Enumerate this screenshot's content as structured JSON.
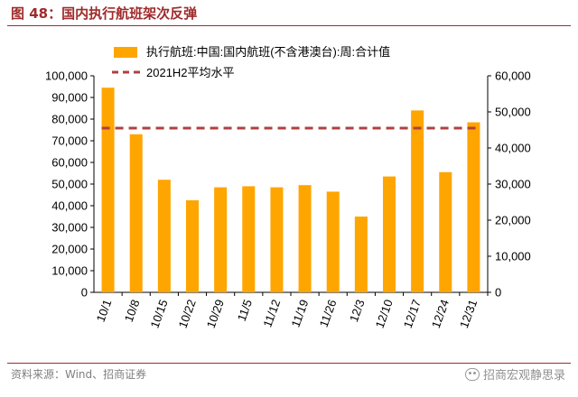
{
  "figure": {
    "title": "图 48：国内执行航班架次反弹",
    "source": "资料来源：Wind、招商证券",
    "brand": "招商宏观静思录"
  },
  "colors": {
    "bar": "#FFA500",
    "avg_line": "#B04040",
    "title": "#A02B2B"
  },
  "chart_data": {
    "type": "bar",
    "title": "",
    "categories": [
      "10/1",
      "10/8",
      "10/15",
      "10/22",
      "10/29",
      "11/5",
      "11/12",
      "11/19",
      "11/26",
      "12/3",
      "12/10",
      "12/17",
      "12/24",
      "12/31"
    ],
    "series": [
      {
        "name": "执行航班:中国:国内航班(不含港澳台):周:合计值",
        "type": "bar",
        "axis": "left",
        "values": [
          94500,
          73000,
          52000,
          42500,
          48500,
          49000,
          48500,
          49500,
          46500,
          35000,
          53500,
          84000,
          55500,
          78500
        ]
      },
      {
        "name": "2021H2平均水平",
        "type": "line",
        "style": "dashed",
        "axis": "right",
        "value": 45500
      }
    ],
    "y_left": {
      "range": [
        0,
        100000
      ],
      "ticks": [
        "0",
        "10,000",
        "20,000",
        "30,000",
        "40,000",
        "50,000",
        "60,000",
        "70,000",
        "80,000",
        "90,000",
        "100,000"
      ]
    },
    "y_right": {
      "range": [
        0,
        60000
      ],
      "ticks": [
        "0",
        "10,000",
        "20,000",
        "30,000",
        "40,000",
        "50,000",
        "60,000"
      ]
    },
    "grid": false,
    "legend_position": "top"
  }
}
